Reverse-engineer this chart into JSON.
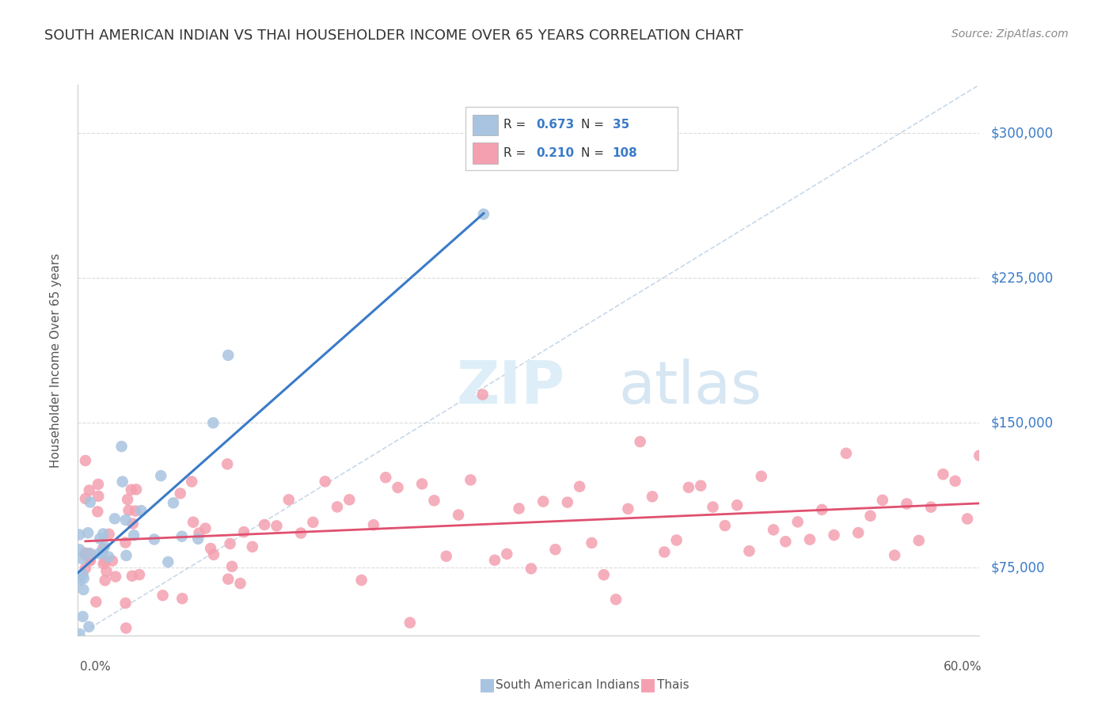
{
  "title": "SOUTH AMERICAN INDIAN VS THAI HOUSEHOLDER INCOME OVER 65 YEARS CORRELATION CHART",
  "source": "Source: ZipAtlas.com",
  "ylabel": "Householder Income Over 65 years",
  "y_ticks": [
    75000,
    150000,
    225000,
    300000
  ],
  "y_tick_labels": [
    "$75,000",
    "$150,000",
    "$225,000",
    "$300,000"
  ],
  "x_range": [
    0.0,
    0.6
  ],
  "y_range": [
    40000,
    325000
  ],
  "R_blue": 0.673,
  "N_blue": 35,
  "R_pink": 0.21,
  "N_pink": 108,
  "blue_color": "#a8c4e0",
  "blue_line_color": "#3a7bc8",
  "pink_color": "#f4a0b0",
  "pink_line_color": "#e05070",
  "diagonal_color": "#b0c8e0",
  "grid_color": "#cccccc",
  "text_color": "#3a7bc8",
  "title_color": "#333333",
  "legend_label_blue": "South American Indians",
  "legend_label_pink": "Thais"
}
